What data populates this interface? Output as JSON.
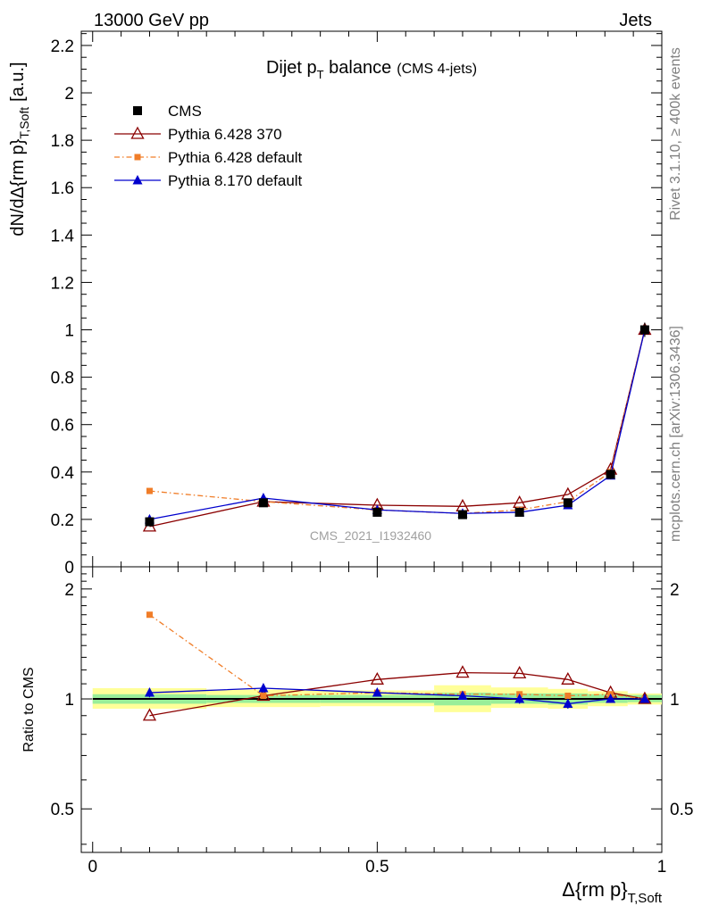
{
  "header": {
    "left": "13000 GeV pp",
    "right": "Jets"
  },
  "side_labels": {
    "rivet": "Rivet 3.1.10, ≥ 400k events",
    "mcplots": "mcplots.cern.ch [arXiv:1306.3436]"
  },
  "chart_data": [
    {
      "type": "line",
      "title_main": "Dijet p",
      "title_sub": "T",
      "title_tail": " balance",
      "subtitle": "(CMS 4-jets)",
      "watermark": "CMS_2021_I1932460",
      "ylabel_main": "dN/dΔ{rm p}",
      "ylabel_sub": "T,Soft",
      "ylabel_unit": "[a.u.]",
      "xlim": [
        -0.02,
        1.0
      ],
      "ylim": [
        0,
        2.26
      ],
      "yticks": [
        "0",
        "0.2",
        "0.4",
        "0.6",
        "0.8",
        "1",
        "1.2",
        "1.4",
        "1.6",
        "1.8",
        "2",
        "2.2"
      ],
      "series": [
        {
          "name": "CMS",
          "color": "#000000",
          "marker": "square",
          "x": [
            0.1,
            0.3,
            0.5,
            0.65,
            0.75,
            0.835,
            0.91,
            0.97
          ],
          "y": [
            0.19,
            0.27,
            0.23,
            0.22,
            0.23,
            0.27,
            0.39,
            1.0
          ],
          "err": [
            0.015,
            0.015,
            0.012,
            0.012,
            0.012,
            0.015,
            0.02,
            0.03
          ]
        },
        {
          "name": "Pythia 6.428 370",
          "color": "#8b0000",
          "marker": "open-triangle",
          "x": [
            0.1,
            0.3,
            0.5,
            0.65,
            0.75,
            0.835,
            0.91,
            0.97
          ],
          "y": [
            0.17,
            0.275,
            0.26,
            0.255,
            0.27,
            0.305,
            0.41,
            1.0
          ]
        },
        {
          "name": "Pythia 6.428 default",
          "color": "#f07d28",
          "marker": "small-square",
          "x": [
            0.1,
            0.3,
            0.5,
            0.65,
            0.75,
            0.835,
            0.91,
            0.97
          ],
          "y": [
            0.32,
            0.275,
            0.24,
            0.225,
            0.24,
            0.275,
            0.4,
            1.0
          ]
        },
        {
          "name": "Pythia 8.170 default",
          "color": "#0000cd",
          "marker": "triangle",
          "x": [
            0.1,
            0.3,
            0.5,
            0.65,
            0.75,
            0.835,
            0.91,
            0.97
          ],
          "y": [
            0.2,
            0.29,
            0.24,
            0.225,
            0.23,
            0.26,
            0.385,
            1.0
          ]
        }
      ]
    },
    {
      "type": "line",
      "ylabel": "Ratio to CMS",
      "xlabel_main": "Δ{rm p}",
      "xlabel_sub": "T,Soft",
      "scale": "log",
      "xlim": [
        -0.02,
        1.0
      ],
      "ylim": [
        0.38,
        2.3
      ],
      "xticks": [
        "0",
        "0.5",
        "1"
      ],
      "yticks": [
        "0.5",
        "1",
        "2"
      ],
      "bands": [
        {
          "x0": 0.0,
          "x1": 0.2,
          "lo_inner": 0.97,
          "hi_inner": 1.03,
          "lo_outer": 0.94,
          "hi_outer": 1.07
        },
        {
          "x0": 0.2,
          "x1": 0.4,
          "lo_inner": 0.975,
          "hi_inner": 1.025,
          "lo_outer": 0.95,
          "hi_outer": 1.06
        },
        {
          "x0": 0.4,
          "x1": 0.6,
          "lo_inner": 0.975,
          "hi_inner": 1.025,
          "lo_outer": 0.955,
          "hi_outer": 1.055
        },
        {
          "x0": 0.6,
          "x1": 0.7,
          "lo_inner": 0.96,
          "hi_inner": 1.04,
          "lo_outer": 0.92,
          "hi_outer": 1.09
        },
        {
          "x0": 0.7,
          "x1": 0.8,
          "lo_inner": 0.97,
          "hi_inner": 1.035,
          "lo_outer": 0.945,
          "hi_outer": 1.075
        },
        {
          "x0": 0.8,
          "x1": 0.87,
          "lo_inner": 0.965,
          "hi_inner": 1.035,
          "lo_outer": 0.94,
          "hi_outer": 1.065
        },
        {
          "x0": 0.87,
          "x1": 0.94,
          "lo_inner": 0.975,
          "hi_inner": 1.03,
          "lo_outer": 0.955,
          "hi_outer": 1.05
        },
        {
          "x0": 0.94,
          "x1": 1.0,
          "lo_inner": 0.98,
          "hi_inner": 1.025,
          "lo_outer": 0.965,
          "hi_outer": 1.035
        }
      ],
      "series": [
        {
          "name": "Pythia 6.428 370",
          "color": "#8b0000",
          "marker": "open-triangle",
          "x": [
            0.1,
            0.3,
            0.5,
            0.65,
            0.75,
            0.835,
            0.91,
            0.97
          ],
          "y": [
            0.9,
            1.02,
            1.13,
            1.18,
            1.175,
            1.13,
            1.04,
            1.0
          ]
        },
        {
          "name": "Pythia 6.428 default",
          "color": "#f07d28",
          "marker": "small-square",
          "x": [
            0.1,
            0.3,
            0.5,
            0.65,
            0.75,
            0.835,
            0.91,
            0.97
          ],
          "y": [
            1.7,
            1.02,
            1.04,
            1.03,
            1.03,
            1.02,
            1.03,
            1.0
          ]
        },
        {
          "name": "Pythia 8.170 default",
          "color": "#0000cd",
          "marker": "triangle",
          "x": [
            0.1,
            0.3,
            0.5,
            0.65,
            0.75,
            0.835,
            0.91,
            0.97
          ],
          "y": [
            1.04,
            1.07,
            1.04,
            1.02,
            1.0,
            0.97,
            1.0,
            1.0
          ],
          "err": [
            0.03,
            0.03,
            0.02,
            0.025,
            0.03,
            0.03,
            0.025,
            0.02
          ]
        }
      ]
    }
  ]
}
